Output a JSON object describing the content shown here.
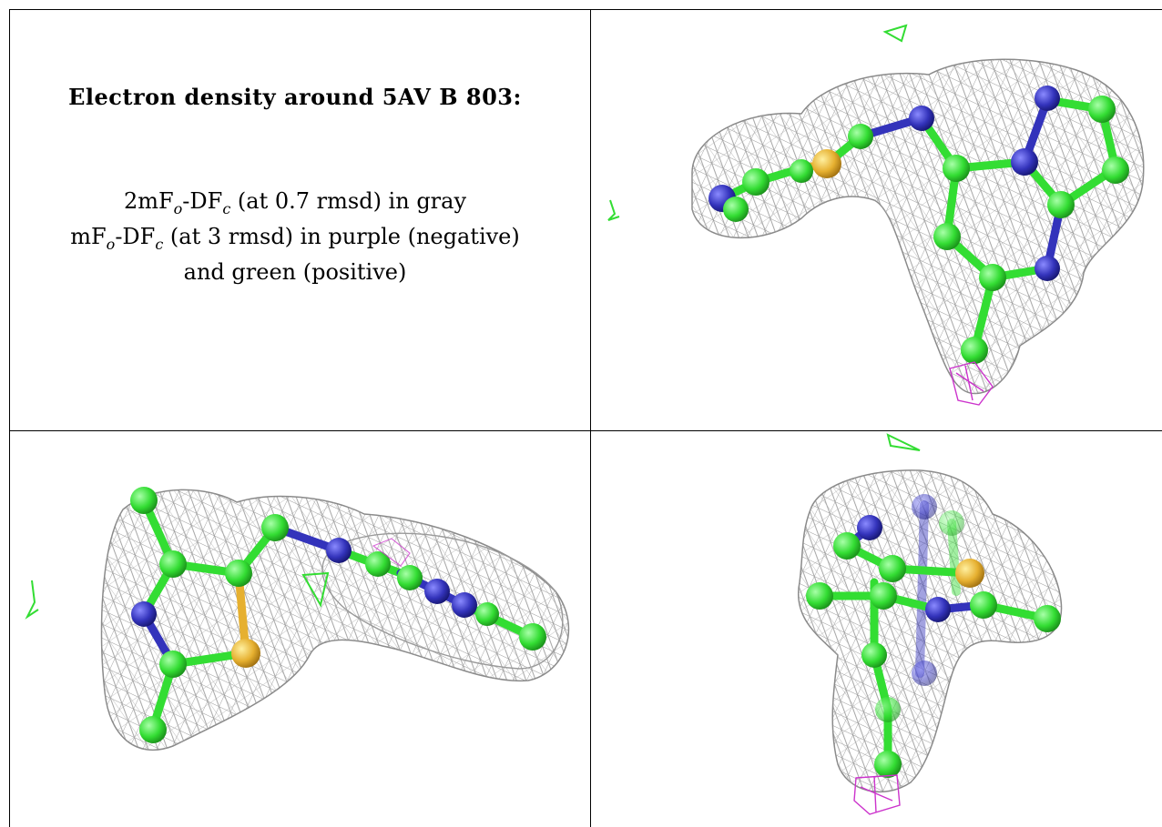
{
  "title": "Electron density around 5AV B 803:",
  "legend": {
    "line1_prefix": "2mF",
    "line1_sub1": "o",
    "line1_mid": "-DF",
    "line1_sub2": "c",
    "line1_suffix": " (at 0.7 rmsd) in gray",
    "line2_prefix": "mF",
    "line2_sub1": "o",
    "line2_mid": "-DF",
    "line2_sub2": "c",
    "line2_suffix": " (at 3 rmsd) in purple (negative)",
    "line3": "and green (positive)"
  },
  "colors": {
    "mesh_2fofc": "#9a9a9a",
    "carbon": "#33dd33",
    "nitrogen": "#3333bb",
    "sulfur": "#e6b030",
    "negative_density": "#cc33cc",
    "positive_density": "#33dd33"
  },
  "views": [
    "top-right",
    "bottom-left",
    "bottom-right"
  ]
}
